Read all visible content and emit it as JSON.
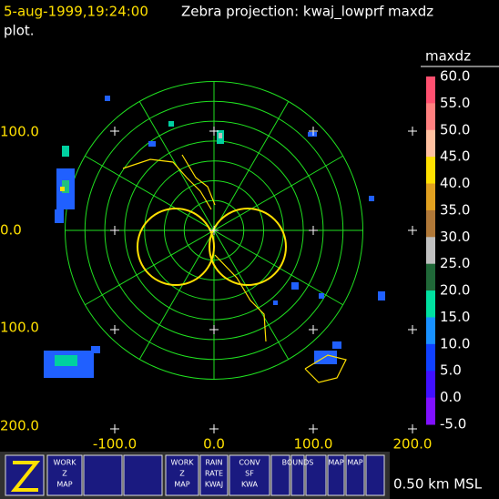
{
  "header": {
    "timestamp": "5-aug-1999,19:24:00",
    "title": "Zebra projection: kwaj_lowprf maxdz",
    "title_cont": "plot."
  },
  "axes": {
    "x_labels": [
      "-100.0",
      "0.0",
      "100.0",
      "200.0"
    ],
    "y_labels": [
      "100.0",
      "0.0",
      "100.0",
      "200.0"
    ]
  },
  "colorbar": {
    "title": "maxdz",
    "labels": [
      "60.0",
      "55.0",
      "50.0",
      "45.0",
      "40.0",
      "35.0",
      "30.0",
      "25.0",
      "20.0",
      "15.0",
      "10.0",
      "5.0",
      "0.0",
      "-5.0"
    ]
  },
  "toolbar": {
    "buttons": [
      [
        "WORK",
        "Z",
        "MAP"
      ],
      [
        "WORK",
        "Z",
        "MAP"
      ],
      [
        "RAIN",
        "RATE",
        "KWAJ"
      ],
      [
        "CONV",
        "SF",
        "KWA"
      ],
      [
        "BOUNDS"
      ],
      [
        "MAP"
      ],
      [
        "MAP"
      ]
    ]
  },
  "footer": {
    "altitude": "0.50 km MSL"
  }
}
